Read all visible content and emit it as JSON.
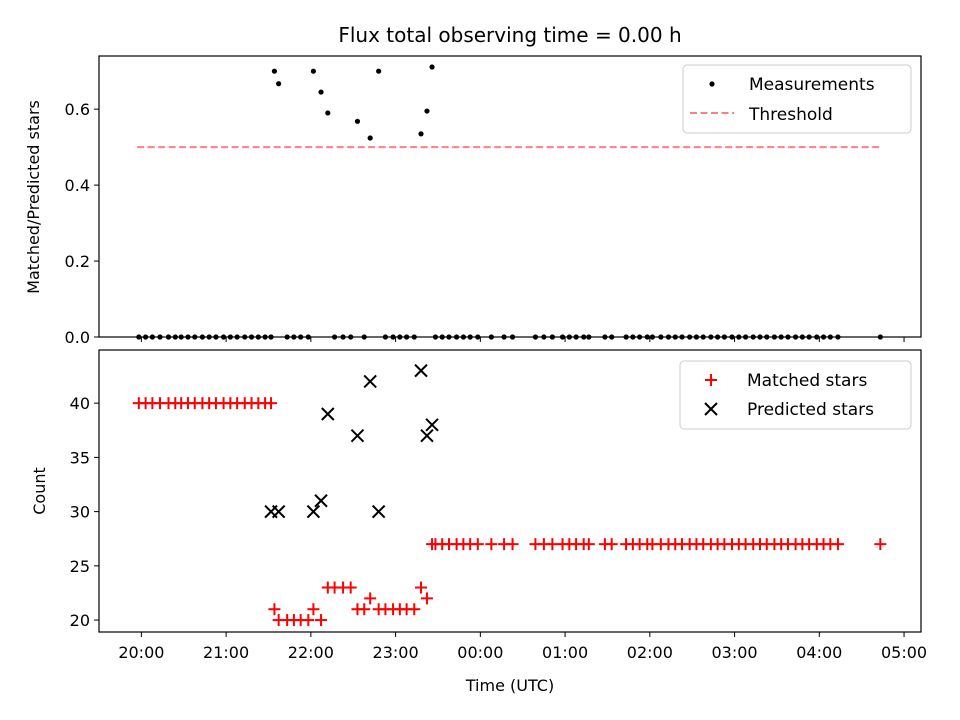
{
  "chart_data": [
    {
      "type": "scatter",
      "title": "Flux total observing time = 0.00 h",
      "xlabel": "",
      "ylabel": "Matched/Predicted stars",
      "xlim": [
        -0.5,
        9.2
      ],
      "ylim": [
        0.0,
        0.74
      ],
      "yticks": [
        0.0,
        0.2,
        0.4,
        0.6
      ],
      "ytick_labels": [
        "0.0",
        "0.2",
        "0.4",
        "0.6"
      ],
      "legend_position": "top-right",
      "series": [
        {
          "name": "Measurements",
          "marker": "dot",
          "color": "#000000",
          "x": [
            -0.03,
            0.05,
            0.13,
            0.22,
            0.32,
            0.4,
            0.47,
            0.55,
            0.63,
            0.72,
            0.8,
            0.88,
            0.97,
            1.05,
            1.13,
            1.22,
            1.3,
            1.38,
            1.46,
            1.53,
            1.57,
            1.62,
            1.72,
            1.8,
            1.88,
            1.97,
            2.03,
            2.12,
            2.2,
            2.28,
            2.38,
            2.47,
            2.55,
            2.63,
            2.7,
            2.8,
            2.88,
            2.97,
            3.05,
            3.13,
            3.22,
            3.3,
            3.37,
            3.43,
            3.47,
            3.55,
            3.63,
            3.72,
            3.8,
            3.88,
            3.97,
            4.13,
            4.28,
            4.38,
            4.65,
            4.75,
            4.85,
            4.97,
            5.05,
            5.13,
            5.22,
            5.28,
            5.47,
            5.55,
            5.72,
            5.8,
            5.88,
            5.97,
            6.03,
            6.13,
            6.22,
            6.3,
            6.38,
            6.47,
            6.55,
            6.63,
            6.72,
            6.8,
            6.88,
            6.97,
            7.05,
            7.13,
            7.22,
            7.3,
            7.38,
            7.47,
            7.55,
            7.63,
            7.72,
            7.8,
            7.88,
            7.97,
            8.05,
            8.13,
            8.22,
            8.72
          ],
          "y": [
            0,
            0,
            0,
            0,
            0,
            0,
            0,
            0,
            0,
            0,
            0,
            0,
            0,
            0,
            0,
            0,
            0,
            0,
            0,
            0,
            0.7,
            0.667,
            0,
            0,
            0,
            0,
            0.7,
            0.645,
            0.59,
            0,
            0,
            0,
            0.568,
            0,
            0.524,
            0.7,
            0,
            0,
            0,
            0,
            0,
            0.535,
            0.595,
            0.711,
            0,
            0,
            0,
            0,
            0,
            0,
            0,
            0,
            0,
            0,
            0,
            0,
            0,
            0,
            0,
            0,
            0,
            0,
            0,
            0,
            0,
            0,
            0,
            0,
            0,
            0,
            0,
            0,
            0,
            0,
            0,
            0,
            0,
            0,
            0,
            0,
            0,
            0,
            0,
            0,
            0,
            0,
            0,
            0,
            0,
            0,
            0,
            0,
            0,
            0,
            0,
            0
          ]
        },
        {
          "name": "Threshold",
          "type": "line",
          "style": "dashed",
          "color": "#ff7f7f",
          "x": [
            -0.05,
            8.72
          ],
          "y": [
            0.5,
            0.5
          ]
        }
      ]
    },
    {
      "type": "scatter",
      "title": "",
      "xlabel": "Time (UTC)",
      "ylabel": "Count",
      "xlim": [
        -0.5,
        9.2
      ],
      "ylim": [
        18.9,
        44.9
      ],
      "yticks": [
        20,
        25,
        30,
        35,
        40
      ],
      "ytick_labels": [
        "20",
        "25",
        "30",
        "35",
        "40"
      ],
      "xticks": [
        0,
        1,
        2,
        3,
        4,
        5,
        6,
        7,
        8,
        9
      ],
      "xtick_labels": [
        "20:00",
        "21:00",
        "22:00",
        "23:00",
        "00:00",
        "01:00",
        "02:00",
        "03:00",
        "04:00",
        "05:00"
      ],
      "legend_position": "top-right",
      "series": [
        {
          "name": "Matched stars",
          "marker": "plus",
          "color": "#ff0000",
          "x": [
            -0.03,
            0.05,
            0.13,
            0.22,
            0.32,
            0.4,
            0.47,
            0.55,
            0.63,
            0.72,
            0.8,
            0.88,
            0.97,
            1.05,
            1.13,
            1.22,
            1.3,
            1.38,
            1.46,
            1.53,
            1.57,
            1.62,
            1.72,
            1.8,
            1.88,
            1.97,
            2.03,
            2.12,
            2.2,
            2.28,
            2.38,
            2.47,
            2.55,
            2.63,
            2.7,
            2.8,
            2.88,
            2.97,
            3.05,
            3.13,
            3.22,
            3.3,
            3.37,
            3.43,
            3.47,
            3.55,
            3.63,
            3.72,
            3.8,
            3.88,
            3.97,
            4.13,
            4.28,
            4.38,
            4.65,
            4.75,
            4.85,
            4.97,
            5.05,
            5.13,
            5.22,
            5.28,
            5.47,
            5.55,
            5.72,
            5.8,
            5.88,
            5.97,
            6.03,
            6.13,
            6.22,
            6.3,
            6.38,
            6.47,
            6.55,
            6.63,
            6.72,
            6.8,
            6.88,
            6.97,
            7.05,
            7.13,
            7.22,
            7.3,
            7.38,
            7.47,
            7.55,
            7.63,
            7.72,
            7.8,
            7.88,
            7.97,
            8.05,
            8.13,
            8.22,
            8.72
          ],
          "y": [
            40,
            40,
            40,
            40,
            40,
            40,
            40,
            40,
            40,
            40,
            40,
            40,
            40,
            40,
            40,
            40,
            40,
            40,
            40,
            40,
            21,
            20,
            20,
            20,
            20,
            20,
            21,
            20,
            23,
            23,
            23,
            23,
            21,
            21,
            22,
            21,
            21,
            21,
            21,
            21,
            21,
            23,
            22,
            27,
            27,
            27,
            27,
            27,
            27,
            27,
            27,
            27,
            27,
            27,
            27,
            27,
            27,
            27,
            27,
            27,
            27,
            27,
            27,
            27,
            27,
            27,
            27,
            27,
            27,
            27,
            27,
            27,
            27,
            27,
            27,
            27,
            27,
            27,
            27,
            27,
            27,
            27,
            27,
            27,
            27,
            27,
            27,
            27,
            27,
            27,
            27,
            27,
            27,
            27,
            27,
            27
          ]
        },
        {
          "name": "Predicted stars",
          "marker": "x",
          "color": "#000000",
          "x": [
            1.53,
            1.62,
            2.03,
            2.12,
            2.2,
            2.55,
            2.7,
            2.8,
            3.3,
            3.37,
            3.43
          ],
          "y": [
            30,
            30,
            30,
            31,
            39,
            37,
            42,
            30,
            43,
            37,
            38
          ]
        }
      ]
    }
  ]
}
